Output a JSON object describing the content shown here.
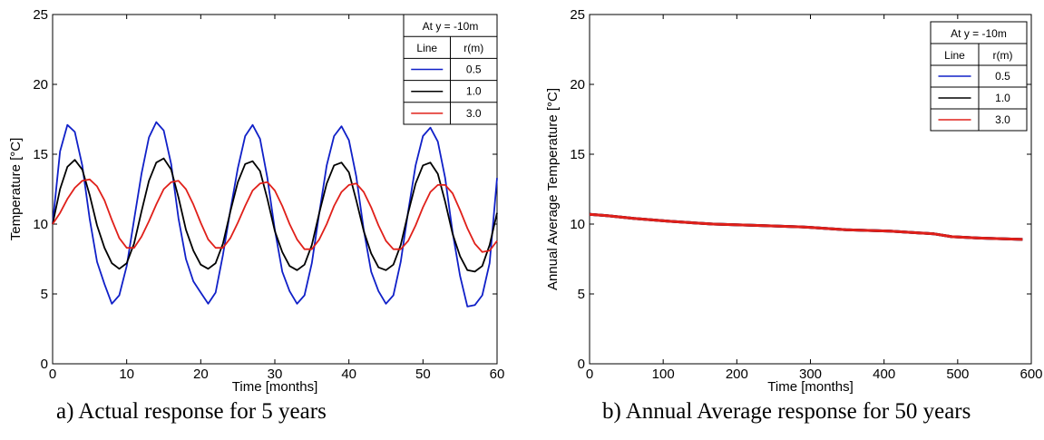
{
  "chart_data": [
    {
      "type": "line",
      "caption": "a) Actual response for 5 years",
      "xlabel": "Time [months]",
      "ylabel": "Temperature [°C]",
      "xlim": [
        0,
        60
      ],
      "ylim": [
        0,
        25
      ],
      "xticks": [
        0,
        10,
        20,
        30,
        40,
        50,
        60
      ],
      "yticks": [
        0,
        5,
        10,
        15,
        20,
        25
      ],
      "grid": false,
      "legend": {
        "placement": "top-right",
        "title": "At y = -10m",
        "col1": "Line",
        "col2": "r(m)",
        "entries": [
          {
            "color": "#1020c8",
            "label": "0.5"
          },
          {
            "color": "#000000",
            "label": "1.0"
          },
          {
            "color": "#e0201a",
            "label": "3.0"
          }
        ]
      },
      "series": [
        {
          "color": "#1020c8",
          "x": [
            0,
            1,
            2,
            3,
            4,
            5,
            6,
            7,
            8,
            9,
            10,
            11,
            12,
            13,
            14,
            15,
            16,
            17,
            18,
            19,
            20,
            21,
            22,
            23,
            24,
            25,
            26,
            27,
            28,
            29,
            30,
            31,
            32,
            33,
            34,
            35,
            36,
            37,
            38,
            39,
            40,
            41,
            42,
            43,
            44,
            45,
            46,
            47,
            48,
            49,
            50,
            51,
            52,
            53,
            54,
            55,
            56,
            57,
            58,
            59,
            60
          ],
          "y": [
            10.0,
            15.2,
            17.1,
            16.6,
            14.2,
            10.4,
            7.3,
            5.7,
            4.3,
            4.9,
            7.0,
            10.3,
            13.6,
            16.2,
            17.3,
            16.7,
            14.3,
            10.4,
            7.5,
            5.9,
            5.1,
            4.3,
            5.1,
            7.8,
            11.0,
            14.0,
            16.3,
            17.1,
            16.1,
            13.3,
            9.6,
            6.6,
            5.2,
            4.3,
            4.9,
            7.2,
            10.8,
            14.2,
            16.3,
            17.0,
            16.0,
            13.4,
            9.6,
            6.6,
            5.2,
            4.3,
            4.9,
            7.3,
            10.9,
            14.2,
            16.3,
            16.9,
            15.9,
            13.3,
            9.4,
            6.3,
            4.1,
            4.2,
            4.9,
            7.2,
            13.3
          ]
        },
        {
          "color": "#000000",
          "x": [
            0,
            1,
            2,
            3,
            4,
            5,
            6,
            7,
            8,
            9,
            10,
            11,
            12,
            13,
            14,
            15,
            16,
            17,
            18,
            19,
            20,
            21,
            22,
            23,
            24,
            25,
            26,
            27,
            28,
            29,
            30,
            31,
            32,
            33,
            34,
            35,
            36,
            37,
            38,
            39,
            40,
            41,
            42,
            43,
            44,
            45,
            46,
            47,
            48,
            49,
            50,
            51,
            52,
            53,
            54,
            55,
            56,
            57,
            58,
            59,
            60
          ],
          "y": [
            10.0,
            12.5,
            14.1,
            14.6,
            13.9,
            12.1,
            9.9,
            8.3,
            7.2,
            6.8,
            7.2,
            8.6,
            10.9,
            13.1,
            14.4,
            14.7,
            13.9,
            11.9,
            9.6,
            8.1,
            7.1,
            6.8,
            7.2,
            8.6,
            10.9,
            13.0,
            14.3,
            14.5,
            13.8,
            11.8,
            9.5,
            8.0,
            7.0,
            6.7,
            7.1,
            8.5,
            10.8,
            12.9,
            14.2,
            14.4,
            13.7,
            11.7,
            9.5,
            7.9,
            6.9,
            6.7,
            7.1,
            8.5,
            10.8,
            12.9,
            14.2,
            14.4,
            13.6,
            11.6,
            9.3,
            7.7,
            6.7,
            6.6,
            7.0,
            8.5,
            10.8
          ]
        },
        {
          "color": "#e0201a",
          "x": [
            0,
            1,
            2,
            3,
            4,
            5,
            6,
            7,
            8,
            9,
            10,
            11,
            12,
            13,
            14,
            15,
            16,
            17,
            18,
            19,
            20,
            21,
            22,
            23,
            24,
            25,
            26,
            27,
            28,
            29,
            30,
            31,
            32,
            33,
            34,
            35,
            36,
            37,
            38,
            39,
            40,
            41,
            42,
            43,
            44,
            45,
            46,
            47,
            48,
            49,
            50,
            51,
            52,
            53,
            54,
            55,
            56,
            57,
            58,
            59,
            60
          ],
          "y": [
            10.0,
            10.8,
            11.8,
            12.6,
            13.1,
            13.2,
            12.7,
            11.7,
            10.3,
            9.0,
            8.3,
            8.3,
            9.1,
            10.2,
            11.4,
            12.5,
            13.0,
            13.1,
            12.5,
            11.4,
            10.1,
            8.9,
            8.3,
            8.3,
            9.0,
            10.1,
            11.3,
            12.4,
            12.9,
            13.0,
            12.4,
            11.3,
            10.0,
            8.9,
            8.2,
            8.2,
            8.9,
            10.0,
            11.3,
            12.3,
            12.8,
            12.9,
            12.3,
            11.2,
            9.9,
            8.8,
            8.2,
            8.2,
            8.8,
            9.9,
            11.2,
            12.3,
            12.8,
            12.8,
            12.2,
            11.0,
            9.7,
            8.6,
            8.0,
            8.1,
            8.8
          ]
        }
      ]
    },
    {
      "type": "line",
      "caption": "b) Annual Average response for 50 years",
      "xlabel": "Time [months]",
      "ylabel": "Annual Average Temperature [°C]",
      "xlim": [
        0,
        600
      ],
      "ylim": [
        0,
        25
      ],
      "xticks": [
        0,
        100,
        200,
        300,
        400,
        500,
        600
      ],
      "yticks": [
        0,
        5,
        10,
        15,
        20,
        25
      ],
      "grid": false,
      "legend": {
        "placement": "top-right",
        "title": "At y = -10m",
        "col1": "Line",
        "col2": "r(m)",
        "entries": [
          {
            "color": "#1020c8",
            "label": "0.5"
          },
          {
            "color": "#000000",
            "label": "1.0"
          },
          {
            "color": "#e0201a",
            "label": "3.0"
          }
        ]
      },
      "series": [
        {
          "color": "#1020c8",
          "x": [
            0,
            24,
            60,
            108,
            168,
            228,
            288,
            348,
            408,
            468,
            492,
            528,
            588
          ],
          "y": [
            10.7,
            10.6,
            10.4,
            10.2,
            10.0,
            9.9,
            9.8,
            9.6,
            9.5,
            9.3,
            9.1,
            9.0,
            8.9
          ]
        },
        {
          "color": "#000000",
          "x": [
            0,
            24,
            60,
            108,
            168,
            228,
            288,
            348,
            408,
            468,
            492,
            528,
            588
          ],
          "y": [
            10.7,
            10.6,
            10.4,
            10.2,
            10.0,
            9.9,
            9.8,
            9.6,
            9.5,
            9.3,
            9.1,
            9.0,
            8.9
          ]
        },
        {
          "color": "#e0201a",
          "x": [
            0,
            24,
            60,
            108,
            168,
            228,
            288,
            348,
            408,
            468,
            492,
            528,
            588
          ],
          "y": [
            10.7,
            10.6,
            10.4,
            10.2,
            10.0,
            9.9,
            9.8,
            9.6,
            9.5,
            9.3,
            9.1,
            9.0,
            8.9
          ]
        }
      ]
    }
  ]
}
